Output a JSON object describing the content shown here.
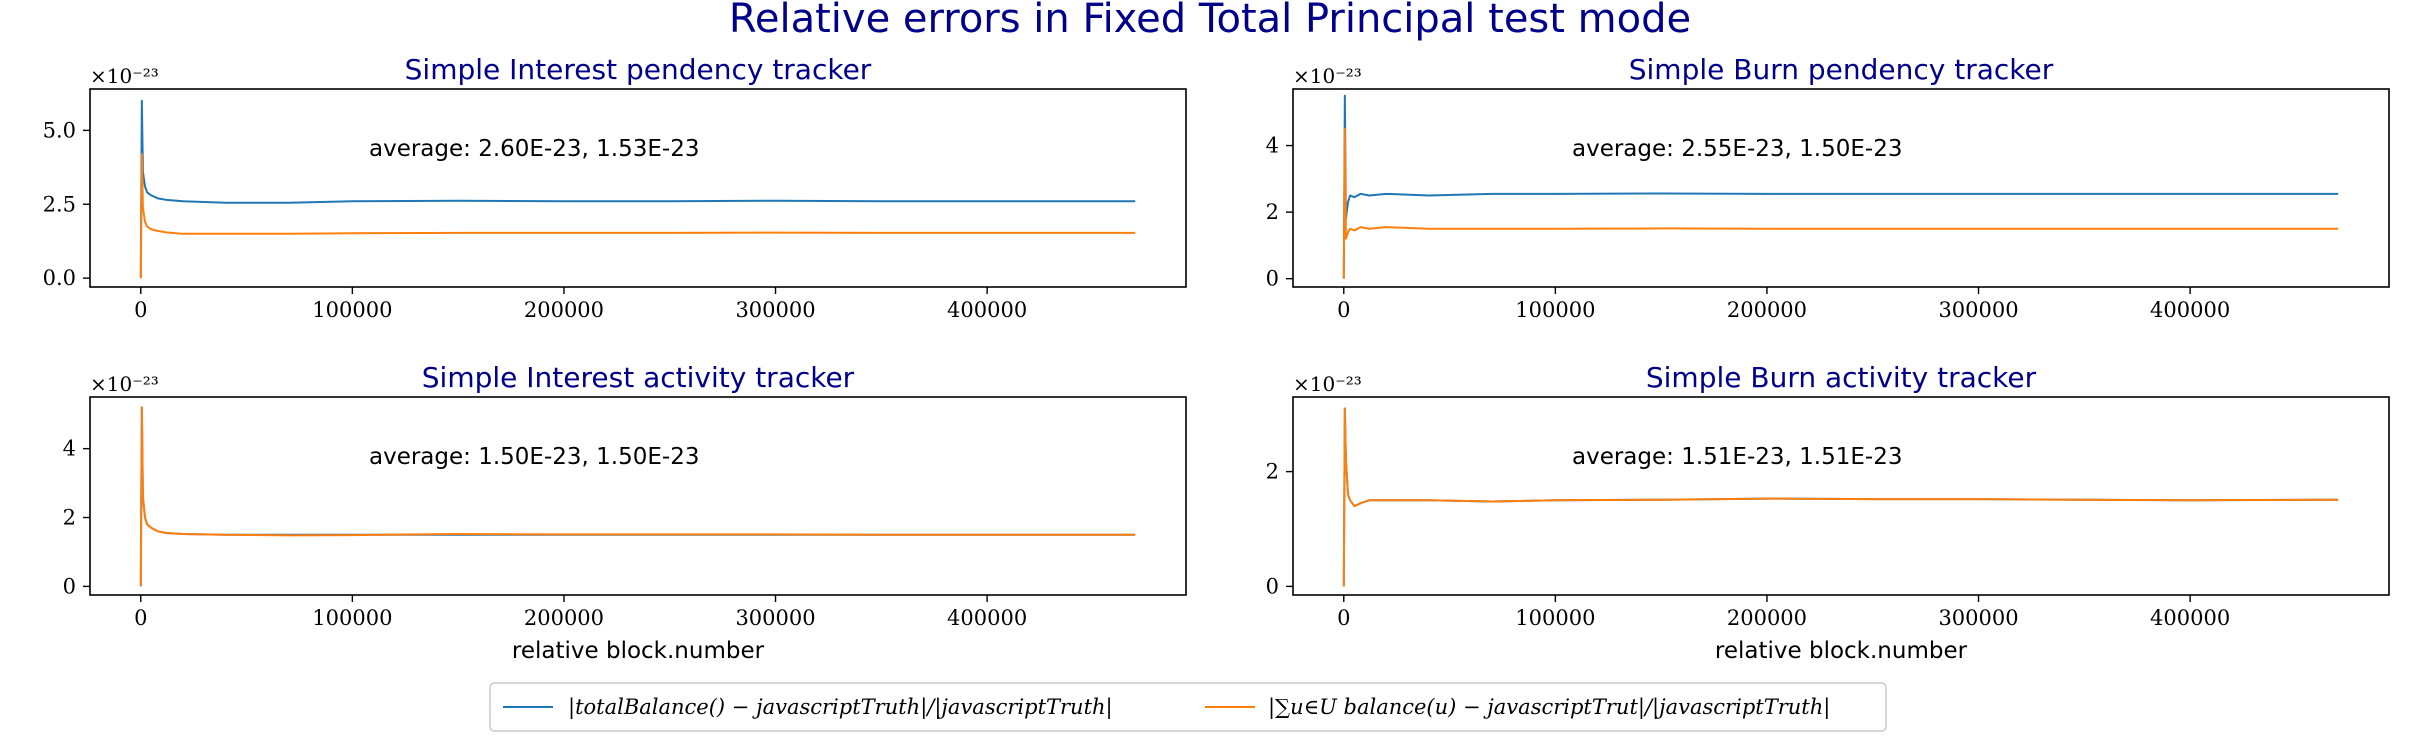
{
  "suptitle": "Relative errors in Fixed Total Principal test mode",
  "colors": {
    "title": "#00008b",
    "series1": "#1f77b4",
    "series2": "#ff7f0e",
    "axis": "#000000"
  },
  "legend": {
    "entries": [
      {
        "label": "|totalBalance() − javascriptTruth|/|javascriptTruth|"
      },
      {
        "label": "|∑u∈U balance(u) − javascriptTrut|/|javascriptTruth|"
      }
    ]
  },
  "chart_data": [
    {
      "type": "line",
      "title": "Simple Interest pendency tracker",
      "xlabel": "",
      "offset_text": "×10⁻²³",
      "annotation": "average: 2.60E-23, 1.53E-23",
      "xlim": [
        -24000,
        494000
      ],
      "ylim": [
        -0.3,
        6.4
      ],
      "x_ticks": [
        0,
        100000,
        200000,
        300000,
        400000
      ],
      "y_ticks": [
        0.0,
        2.5,
        5.0
      ],
      "y_tick_labels": [
        "0.0",
        "2.5",
        "5.0"
      ],
      "series": [
        {
          "x": [
            0,
            500,
            1000,
            2000,
            3000,
            5000,
            8000,
            12000,
            20000,
            40000,
            70000,
            100000,
            150000,
            200000,
            250000,
            300000,
            350000,
            400000,
            470000
          ],
          "y": [
            0,
            6.0,
            3.6,
            3.1,
            2.9,
            2.8,
            2.7,
            2.65,
            2.6,
            2.55,
            2.55,
            2.6,
            2.62,
            2.6,
            2.6,
            2.62,
            2.6,
            2.6,
            2.6
          ]
        },
        {
          "x": [
            0,
            500,
            1000,
            2000,
            3000,
            5000,
            8000,
            12000,
            20000,
            40000,
            70000,
            100000,
            150000,
            200000,
            250000,
            300000,
            350000,
            400000,
            470000
          ],
          "y": [
            0,
            4.2,
            2.4,
            1.9,
            1.75,
            1.65,
            1.6,
            1.55,
            1.5,
            1.5,
            1.5,
            1.52,
            1.53,
            1.53,
            1.53,
            1.54,
            1.53,
            1.53,
            1.53
          ]
        }
      ]
    },
    {
      "type": "line",
      "title": "Simple Burn pendency tracker",
      "xlabel": "",
      "offset_text": "×10⁻²³",
      "annotation": "average: 2.55E-23, 1.50E-23",
      "xlim": [
        -24000,
        494000
      ],
      "ylim": [
        -0.25,
        5.7
      ],
      "x_ticks": [
        0,
        100000,
        200000,
        300000,
        400000
      ],
      "y_ticks": [
        0,
        2,
        4
      ],
      "y_tick_labels": [
        "0",
        "2",
        "4"
      ],
      "series": [
        {
          "x": [
            0,
            500,
            1000,
            2000,
            3000,
            5000,
            8000,
            12000,
            20000,
            40000,
            70000,
            100000,
            150000,
            200000,
            250000,
            300000,
            350000,
            400000,
            470000
          ],
          "y": [
            0,
            5.5,
            1.8,
            2.3,
            2.5,
            2.45,
            2.55,
            2.5,
            2.55,
            2.5,
            2.55,
            2.55,
            2.56,
            2.55,
            2.55,
            2.55,
            2.55,
            2.55,
            2.55
          ]
        },
        {
          "x": [
            0,
            500,
            1000,
            2000,
            3000,
            5000,
            8000,
            12000,
            20000,
            40000,
            70000,
            100000,
            150000,
            200000,
            250000,
            300000,
            350000,
            400000,
            470000
          ],
          "y": [
            0,
            4.5,
            1.2,
            1.4,
            1.5,
            1.45,
            1.55,
            1.5,
            1.55,
            1.5,
            1.5,
            1.5,
            1.51,
            1.5,
            1.5,
            1.5,
            1.5,
            1.5,
            1.5
          ]
        }
      ]
    },
    {
      "type": "line",
      "title": "Simple Interest activity tracker",
      "xlabel": "relative block.number",
      "offset_text": "×10⁻²³",
      "annotation": "average: 1.50E-23, 1.50E-23",
      "xlim": [
        -24000,
        494000
      ],
      "ylim": [
        -0.25,
        5.5
      ],
      "x_ticks": [
        0,
        100000,
        200000,
        300000,
        400000
      ],
      "y_ticks": [
        0,
        2,
        4
      ],
      "y_tick_labels": [
        "0",
        "2",
        "4"
      ],
      "series": [
        {
          "x": [
            0,
            500,
            1000,
            2000,
            3000,
            5000,
            8000,
            12000,
            20000,
            40000,
            70000,
            100000,
            150000,
            200000,
            250000,
            300000,
            350000,
            400000,
            470000
          ],
          "y": [
            0,
            5.2,
            2.6,
            2.0,
            1.8,
            1.7,
            1.6,
            1.55,
            1.52,
            1.5,
            1.5,
            1.5,
            1.5,
            1.5,
            1.5,
            1.5,
            1.5,
            1.5,
            1.5
          ]
        },
        {
          "x": [
            0,
            500,
            1000,
            2000,
            3000,
            5000,
            8000,
            12000,
            20000,
            40000,
            70000,
            100000,
            150000,
            200000,
            250000,
            300000,
            350000,
            400000,
            470000
          ],
          "y": [
            0,
            5.2,
            2.6,
            2.0,
            1.8,
            1.7,
            1.6,
            1.55,
            1.52,
            1.5,
            1.48,
            1.49,
            1.52,
            1.51,
            1.51,
            1.51,
            1.5,
            1.5,
            1.5
          ]
        }
      ]
    },
    {
      "type": "line",
      "title": "Simple Burn activity tracker",
      "xlabel": "relative block.number",
      "offset_text": "×10⁻²³",
      "annotation": "average: 1.51E-23, 1.51E-23",
      "xlim": [
        -24000,
        494000
      ],
      "ylim": [
        -0.15,
        3.3
      ],
      "x_ticks": [
        0,
        100000,
        200000,
        300000,
        400000
      ],
      "y_ticks": [
        0,
        2
      ],
      "y_tick_labels": [
        "0",
        "2"
      ],
      "series": [
        {
          "x": [
            0,
            500,
            1000,
            2000,
            3000,
            5000,
            8000,
            12000,
            20000,
            40000,
            70000,
            100000,
            150000,
            200000,
            250000,
            300000,
            350000,
            400000,
            470000
          ],
          "y": [
            0,
            3.1,
            2.2,
            1.6,
            1.5,
            1.4,
            1.45,
            1.5,
            1.5,
            1.5,
            1.48,
            1.5,
            1.51,
            1.53,
            1.52,
            1.52,
            1.51,
            1.5,
            1.51
          ]
        },
        {
          "x": [
            0,
            500,
            1000,
            2000,
            3000,
            5000,
            8000,
            12000,
            20000,
            40000,
            70000,
            100000,
            150000,
            200000,
            250000,
            300000,
            350000,
            400000,
            470000
          ],
          "y": [
            0,
            3.1,
            2.2,
            1.6,
            1.5,
            1.4,
            1.45,
            1.5,
            1.5,
            1.5,
            1.48,
            1.5,
            1.51,
            1.53,
            1.52,
            1.52,
            1.51,
            1.5,
            1.51
          ]
        }
      ]
    }
  ]
}
